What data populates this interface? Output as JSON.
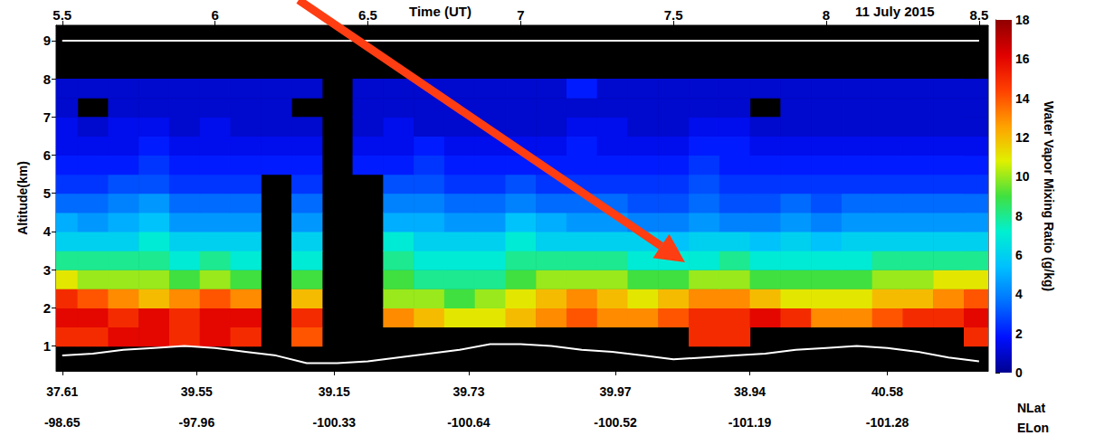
{
  "chart_data": {
    "type": "heatmap",
    "title": "11 July 2015",
    "xlabel": "Time (UT)",
    "ylabel": "Altitude(km)",
    "xlim": [
      5.48,
      8.53
    ],
    "xticks": [
      5.5,
      6,
      6.5,
      7,
      7.5,
      8,
      8.5
    ],
    "ylim": [
      0.35,
      9.4
    ],
    "yticks": [
      1,
      2,
      3,
      4,
      5,
      6,
      7,
      8,
      9
    ],
    "x2label": "NLat",
    "x2ticks": [
      {
        "value": 5.5,
        "label": "37.61"
      },
      {
        "value": 5.94,
        "label": "39.55"
      },
      {
        "value": 6.39,
        "label": "39.15"
      },
      {
        "value": 6.83,
        "label": "39.73"
      },
      {
        "value": 7.31,
        "label": "39.97"
      },
      {
        "value": 7.75,
        "label": "38.94"
      },
      {
        "value": 8.2,
        "label": "40.58"
      }
    ],
    "x3label": "ELon",
    "x3ticks": [
      {
        "value": 5.5,
        "label": "-98.65"
      },
      {
        "value": 5.94,
        "label": "-97.96"
      },
      {
        "value": 6.39,
        "label": "-100.33"
      },
      {
        "value": 6.83,
        "label": "-100.64"
      },
      {
        "value": 7.31,
        "label": "-100.52"
      },
      {
        "value": 7.75,
        "label": "-101.19"
      },
      {
        "value": 8.2,
        "label": "-101.28"
      }
    ],
    "grid": false,
    "x": [
      5.5,
      5.6,
      5.7,
      5.8,
      5.9,
      6,
      6.1,
      6.2,
      6.3,
      6.4,
      6.5,
      6.6,
      6.7,
      6.8,
      6.9,
      7,
      7.1,
      7.2,
      7.3,
      7.4,
      7.5,
      7.6,
      7.7,
      7.8,
      7.9,
      8,
      8.1,
      8.2,
      8.3,
      8.4,
      8.5
    ],
    "cells": {
      "y": [
        1.25,
        1.75,
        2.25,
        2.75,
        3.25,
        3.75,
        4.25,
        4.75,
        5.25,
        5.75,
        6.25,
        6.75,
        7.25,
        7.75
      ],
      "values": [
        [
          15,
          15,
          16,
          16,
          15,
          16,
          15,
          null,
          14,
          null,
          null,
          null,
          null,
          null,
          null,
          null,
          null,
          null,
          null,
          null,
          null,
          15,
          15,
          null,
          null,
          null,
          null,
          null,
          null,
          null,
          15
        ],
        [
          16,
          16,
          15,
          16,
          15,
          16,
          16,
          null,
          15,
          null,
          null,
          13,
          12,
          11,
          11,
          12,
          13,
          14,
          13,
          13,
          14,
          15,
          15,
          16,
          15,
          13,
          13,
          14,
          15,
          15,
          16
        ],
        [
          15,
          14,
          13,
          12,
          13,
          14,
          13,
          null,
          12,
          null,
          null,
          10,
          10,
          9,
          10,
          11,
          12,
          13,
          12,
          11,
          12,
          13,
          13,
          12,
          11,
          11,
          11,
          12,
          12,
          13,
          14
        ],
        [
          11,
          10,
          10,
          10,
          9,
          10,
          9,
          null,
          9,
          null,
          null,
          9,
          8,
          8,
          8,
          9,
          10,
          10,
          10,
          9,
          9,
          10,
          10,
          9,
          9,
          9,
          9,
          10,
          10,
          11,
          11
        ],
        [
          8,
          8,
          8,
          8,
          7,
          8,
          7,
          null,
          7,
          null,
          null,
          8,
          7,
          7,
          7,
          8,
          8,
          8,
          8,
          7,
          7,
          7,
          8,
          7,
          7,
          7,
          7,
          8,
          8,
          8,
          8
        ],
        [
          6,
          6,
          6,
          7,
          6,
          6,
          6,
          null,
          6,
          null,
          null,
          7,
          6,
          6,
          6,
          7,
          6,
          6,
          6,
          6,
          5.5,
          6,
          6,
          5.5,
          6,
          5.5,
          6,
          6,
          6,
          6,
          6
        ],
        [
          5,
          4.5,
          5,
          5.5,
          4.5,
          4.5,
          4.5,
          null,
          4.5,
          null,
          null,
          5,
          5,
          4.5,
          4.5,
          5.5,
          5,
          4.5,
          4.5,
          4,
          4,
          4.5,
          4,
          4,
          4.5,
          4,
          4.5,
          4.5,
          4.5,
          4.5,
          4.5
        ],
        [
          3.5,
          3.5,
          4,
          4.5,
          3.5,
          3.5,
          3.5,
          null,
          3.5,
          null,
          null,
          4,
          4,
          3.5,
          3.5,
          4,
          3.5,
          3.5,
          3.5,
          3,
          3,
          3.5,
          3,
          3,
          3.5,
          3,
          3.5,
          3.5,
          3.5,
          3.5,
          3.5
        ],
        [
          2.5,
          2.5,
          3,
          3,
          2.5,
          2.5,
          2.5,
          null,
          2.5,
          null,
          null,
          3,
          3,
          2.5,
          2.5,
          3,
          2.5,
          2.5,
          2.5,
          2.5,
          2.5,
          3,
          2.5,
          2.5,
          2.5,
          2.5,
          2.5,
          2.5,
          2.5,
          2.5,
          2.5
        ],
        [
          2,
          2,
          2,
          2.5,
          2,
          2,
          2,
          2,
          2,
          null,
          2,
          2,
          2.5,
          2,
          2,
          2,
          2,
          2,
          2,
          2,
          2,
          2.5,
          2,
          2,
          2,
          2,
          2,
          2,
          2,
          2,
          2
        ],
        [
          1.5,
          1.5,
          1.5,
          2,
          1.5,
          1.5,
          1.5,
          1.5,
          1.5,
          null,
          1.5,
          1.5,
          2,
          1.5,
          1.5,
          1.5,
          1.5,
          2,
          1.5,
          1.5,
          1.5,
          2,
          2,
          1.5,
          1.5,
          1.5,
          1.5,
          1.5,
          1.5,
          1.5,
          1.5
        ],
        [
          1.5,
          1,
          1.5,
          1.5,
          1,
          1.5,
          1,
          1,
          1,
          null,
          1,
          1.5,
          1,
          1,
          1,
          1,
          1,
          1.5,
          1.5,
          1,
          1,
          1.5,
          1.5,
          1,
          1,
          1,
          1,
          1,
          1,
          1,
          1
        ],
        [
          1,
          null,
          1,
          1,
          1,
          1,
          1,
          1,
          null,
          null,
          1,
          1,
          1,
          1,
          1,
          1,
          1,
          1,
          1,
          1,
          1,
          1,
          1,
          null,
          1,
          1,
          1,
          1,
          1,
          1,
          1
        ],
        [
          1,
          1,
          1,
          1,
          1,
          1,
          1,
          1,
          1,
          null,
          1,
          1,
          1,
          1,
          1,
          1,
          1,
          2,
          1,
          1,
          1,
          1,
          1,
          1,
          1,
          1,
          1,
          1,
          1,
          1,
          1
        ]
      ]
    },
    "colorbar": {
      "label": "Water Vapor Mixing Ratio (g/kg)",
      "range": [
        0,
        18
      ],
      "ticks": [
        0,
        2,
        4,
        6,
        8,
        10,
        12,
        14,
        16,
        18
      ]
    },
    "series": [
      {
        "type": "line",
        "color": "#ffffff",
        "values": [
          9,
          9,
          9,
          9,
          9,
          9,
          9,
          9,
          9,
          9,
          9,
          9,
          9,
          9,
          9,
          9,
          9,
          9,
          9,
          9,
          9,
          9,
          9,
          9,
          9,
          9,
          9,
          9,
          9,
          9,
          9
        ]
      },
      {
        "type": "line",
        "color": "#ffffff",
        "values": [
          0.75,
          0.8,
          0.9,
          0.95,
          1,
          0.95,
          0.85,
          0.75,
          0.55,
          0.55,
          0.6,
          0.7,
          0.8,
          0.9,
          1.05,
          1.05,
          1,
          0.9,
          0.85,
          0.75,
          0.65,
          0.7,
          0.75,
          0.8,
          0.9,
          0.95,
          1,
          0.95,
          0.85,
          0.7,
          0.6
        ]
      }
    ]
  }
}
